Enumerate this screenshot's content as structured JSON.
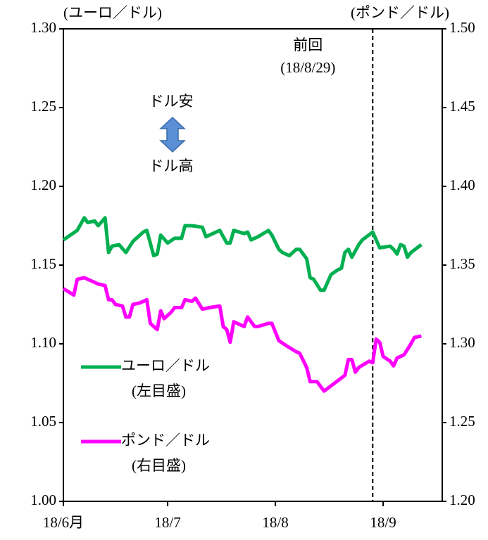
{
  "chart_data": {
    "type": "line",
    "y_axis_label": "(ユーロ／ドル)",
    "y2_axis_label": "(ポンド／ドル)",
    "xlim": [
      0,
      109
    ],
    "xticks": [
      {
        "value": 0,
        "label": "18/6月"
      },
      {
        "value": 30,
        "label": "18/7"
      },
      {
        "value": 61,
        "label": "18/8"
      },
      {
        "value": 92,
        "label": "18/9"
      }
    ],
    "ylim": [
      1.0,
      1.3
    ],
    "yticks": [
      {
        "value": 1.0,
        "label": "1.00"
      },
      {
        "value": 1.05,
        "label": "1.05"
      },
      {
        "value": 1.1,
        "label": "1.10"
      },
      {
        "value": 1.15,
        "label": "1.15"
      },
      {
        "value": 1.2,
        "label": "1.20"
      },
      {
        "value": 1.25,
        "label": "1.25"
      },
      {
        "value": 1.3,
        "label": "1.30"
      }
    ],
    "y2lim": [
      1.2,
      1.5
    ],
    "y2ticks": [
      {
        "value": 1.2,
        "label": "1.20"
      },
      {
        "value": 1.25,
        "label": "1.25"
      },
      {
        "value": 1.3,
        "label": "1.30"
      },
      {
        "value": 1.35,
        "label": "1.35"
      },
      {
        "value": 1.4,
        "label": "1.40"
      },
      {
        "value": 1.45,
        "label": "1.45"
      },
      {
        "value": 1.5,
        "label": "1.50"
      }
    ],
    "event": {
      "x": 89,
      "label": "前回",
      "date": "(18/8/29)"
    },
    "arrow_labels": {
      "up": "ドル安",
      "down": "ドル高"
    },
    "series": [
      {
        "name": "ユーロ／ドル",
        "note": "(左目盛)",
        "color": "#00b050",
        "axis": "y",
        "x": [
          0,
          2,
          4,
          6,
          7,
          9,
          10,
          12,
          13,
          14,
          16,
          18,
          20,
          23,
          24,
          26,
          27,
          28,
          30,
          32,
          34,
          35,
          37,
          40,
          41,
          43,
          45,
          47,
          48,
          49,
          52,
          53,
          54,
          56,
          59,
          60,
          62,
          63,
          65,
          67,
          68,
          70,
          71,
          72,
          74,
          75,
          77,
          79,
          80,
          81,
          82,
          83,
          85,
          86,
          89,
          91,
          94,
          95,
          96,
          97,
          98,
          99,
          100,
          103
        ],
        "values": [
          1.166,
          1.169,
          1.172,
          1.18,
          1.177,
          1.178,
          1.175,
          1.18,
          1.158,
          1.162,
          1.163,
          1.158,
          1.165,
          1.171,
          1.172,
          1.156,
          1.157,
          1.169,
          1.164,
          1.167,
          1.167,
          1.175,
          1.175,
          1.174,
          1.168,
          1.17,
          1.172,
          1.164,
          1.164,
          1.172,
          1.17,
          1.171,
          1.166,
          1.168,
          1.172,
          1.169,
          1.16,
          1.158,
          1.156,
          1.16,
          1.16,
          1.154,
          1.142,
          1.141,
          1.134,
          1.134,
          1.144,
          1.147,
          1.148,
          1.158,
          1.16,
          1.155,
          1.163,
          1.166,
          1.171,
          1.161,
          1.162,
          1.16,
          1.157,
          1.163,
          1.162,
          1.155,
          1.158,
          1.163
        ]
      },
      {
        "name": "ポンド／ドル",
        "note": "(右目盛)",
        "color": "#ff00ff",
        "axis": "y2",
        "x": [
          0,
          3,
          4,
          6,
          8,
          10,
          12,
          13,
          14,
          15,
          17,
          18,
          19,
          20,
          22,
          24,
          25,
          27,
          28,
          29,
          31,
          32,
          34,
          35,
          37,
          38,
          40,
          42,
          45,
          46,
          47,
          48,
          49,
          51,
          52,
          53,
          55,
          56,
          59,
          60,
          62,
          64,
          67,
          68,
          70,
          71,
          73,
          74,
          75,
          78,
          81,
          82,
          83,
          84,
          85,
          88,
          89,
          90,
          91,
          92,
          94,
          95,
          96,
          98,
          100,
          101,
          103
        ],
        "values": [
          1.335,
          1.331,
          1.341,
          1.342,
          1.34,
          1.338,
          1.337,
          1.328,
          1.328,
          1.325,
          1.324,
          1.317,
          1.317,
          1.325,
          1.326,
          1.328,
          1.313,
          1.309,
          1.321,
          1.316,
          1.32,
          1.323,
          1.323,
          1.328,
          1.327,
          1.329,
          1.322,
          1.323,
          1.324,
          1.311,
          1.309,
          1.301,
          1.314,
          1.312,
          1.311,
          1.317,
          1.311,
          1.311,
          1.313,
          1.313,
          1.302,
          1.299,
          1.295,
          1.294,
          1.285,
          1.276,
          1.276,
          1.273,
          1.27,
          1.275,
          1.28,
          1.29,
          1.29,
          1.282,
          1.285,
          1.289,
          1.288,
          1.303,
          1.301,
          1.292,
          1.289,
          1.286,
          1.291,
          1.293,
          1.3,
          1.304,
          1.305
        ]
      }
    ]
  }
}
